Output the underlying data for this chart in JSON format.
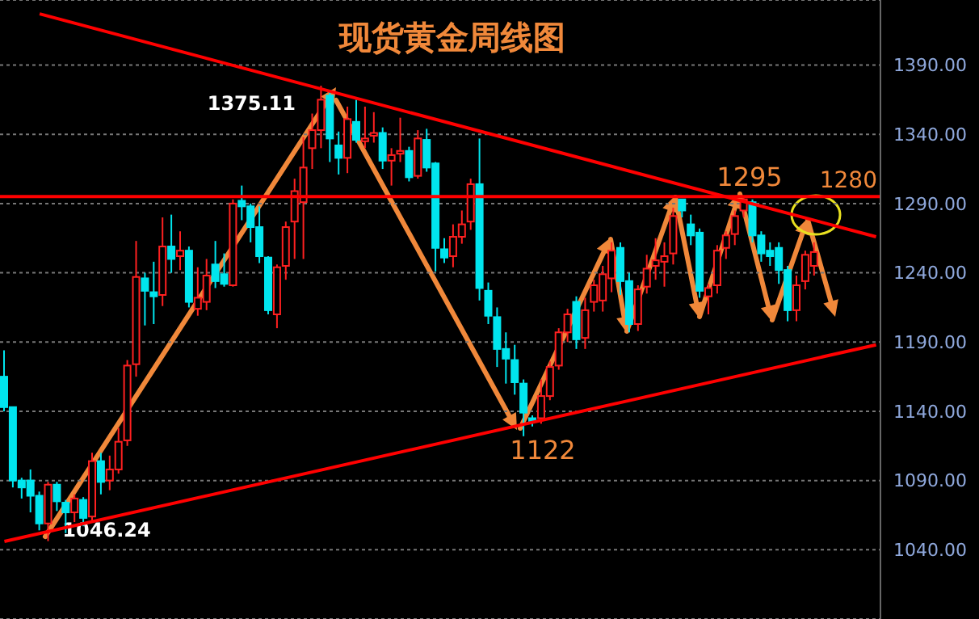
{
  "chart_data": {
    "type": "candlestick",
    "title": "现货黄金周线图",
    "categories": [
      null,
      null,
      null,
      null,
      null,
      null,
      null,
      null,
      null,
      null,
      null,
      null,
      null,
      null,
      null,
      null,
      null,
      null,
      null,
      null,
      null,
      null,
      null,
      null,
      null,
      null,
      null,
      null,
      null,
      null,
      null,
      null,
      null,
      null,
      null,
      null,
      null,
      null,
      null,
      null,
      null,
      null,
      null,
      null,
      null,
      null,
      null,
      null,
      null,
      null,
      null,
      null,
      null,
      null,
      null,
      null,
      null,
      null,
      null,
      null,
      null,
      null,
      null,
      null,
      null,
      null,
      null,
      null,
      null,
      null,
      null,
      null,
      null,
      null,
      null,
      null,
      null,
      null,
      null,
      null,
      null,
      null,
      null,
      null,
      null,
      null,
      null,
      null,
      null,
      null,
      null,
      null,
      null,
      null,
      null,
      null,
      null,
      null,
      null,
      null
    ],
    "ohlc": [
      [
        1165,
        1184,
        1140,
        1143
      ],
      [
        1143,
        1143,
        1085,
        1090
      ],
      [
        1090,
        1092,
        1077,
        1085
      ],
      [
        1090,
        1098,
        1067,
        1079
      ],
      [
        1079,
        1082,
        1054,
        1059
      ],
      [
        1059,
        1089,
        1046.24,
        1087
      ],
      [
        1087,
        1089,
        1068,
        1075
      ],
      [
        1074,
        1076,
        1052,
        1067
      ],
      [
        1067,
        1080,
        1060,
        1077
      ],
      [
        1076,
        1078,
        1057,
        1063
      ],
      [
        1064,
        1110,
        1060,
        1104
      ],
      [
        1104,
        1110,
        1080,
        1089
      ],
      [
        1090,
        1108,
        1083,
        1098
      ],
      [
        1098,
        1128,
        1095,
        1118
      ],
      [
        1119,
        1177,
        1115,
        1173
      ],
      [
        1174,
        1263,
        1165,
        1237
      ],
      [
        1236,
        1240,
        1202,
        1227
      ],
      [
        1226,
        1248,
        1203,
        1223
      ],
      [
        1224,
        1280,
        1216,
        1259
      ],
      [
        1259,
        1282,
        1240,
        1250
      ],
      [
        1252,
        1270,
        1242,
        1256
      ],
      [
        1256,
        1259,
        1215,
        1219
      ],
      [
        1214,
        1244,
        1209,
        1222
      ],
      [
        1219,
        1250,
        1213,
        1238
      ],
      [
        1246,
        1263,
        1229,
        1234
      ],
      [
        1239,
        1254,
        1230,
        1232
      ],
      [
        1231,
        1293,
        1230,
        1290
      ],
      [
        1292,
        1303,
        1278,
        1288
      ],
      [
        1288,
        1290,
        1262,
        1273
      ],
      [
        1273,
        1288,
        1247,
        1252
      ],
      [
        1251,
        1252,
        1210,
        1213
      ],
      [
        1210,
        1246,
        1200,
        1244
      ],
      [
        1245,
        1277,
        1235,
        1273
      ],
      [
        1277,
        1308,
        1250,
        1299
      ],
      [
        1291,
        1338,
        1250,
        1316
      ],
      [
        1330,
        1355,
        1315,
        1343
      ],
      [
        1343,
        1375.11,
        1330,
        1365
      ],
      [
        1368,
        1372,
        1320,
        1337
      ],
      [
        1332,
        1342,
        1311,
        1323
      ],
      [
        1323,
        1360,
        1312,
        1351
      ],
      [
        1349,
        1365,
        1334,
        1336
      ],
      [
        1335,
        1360,
        1330,
        1337
      ],
      [
        1339,
        1356,
        1334,
        1341
      ],
      [
        1341,
        1345,
        1315,
        1321
      ],
      [
        1321,
        1330,
        1303,
        1325
      ],
      [
        1326,
        1352,
        1320,
        1328
      ],
      [
        1328,
        1331,
        1306,
        1309
      ],
      [
        1310,
        1343,
        1308,
        1337
      ],
      [
        1336,
        1344,
        1313,
        1316
      ],
      [
        1319,
        1320,
        1241,
        1258
      ],
      [
        1257,
        1265,
        1247,
        1251
      ],
      [
        1252,
        1275,
        1244,
        1266
      ],
      [
        1266,
        1285,
        1261,
        1275
      ],
      [
        1277,
        1308,
        1271,
        1304
      ],
      [
        1304,
        1337,
        1220,
        1229
      ],
      [
        1227,
        1233,
        1203,
        1209
      ],
      [
        1208,
        1215,
        1172,
        1185
      ],
      [
        1185,
        1197,
        1160,
        1178
      ],
      [
        1177,
        1188,
        1152,
        1161
      ],
      [
        1160,
        1163,
        1122,
        1139
      ],
      [
        1135,
        1137,
        1129,
        1133
      ],
      [
        1135,
        1163,
        1131,
        1151
      ],
      [
        1151,
        1176,
        1148,
        1172
      ],
      [
        1173,
        1200,
        1170,
        1197
      ],
      [
        1197,
        1214,
        1190,
        1210
      ],
      [
        1219,
        1223,
        1185,
        1192
      ],
      [
        1193,
        1222,
        1185,
        1213
      ],
      [
        1219,
        1235,
        1212,
        1231
      ],
      [
        1220,
        1245,
        1212,
        1239
      ],
      [
        1236,
        1262,
        1226,
        1256
      ],
      [
        1258,
        1262,
        1224,
        1234
      ],
      [
        1234,
        1240,
        1197,
        1203
      ],
      [
        1203,
        1231,
        1198,
        1228
      ],
      [
        1230,
        1253,
        1225,
        1243
      ],
      [
        1245,
        1265,
        1235,
        1249
      ],
      [
        1248,
        1262,
        1230,
        1252
      ],
      [
        1254,
        1287,
        1246,
        1281
      ],
      [
        1293,
        1293,
        1280,
        1285
      ],
      [
        1275,
        1282,
        1260,
        1267
      ],
      [
        1269,
        1272,
        1222,
        1227
      ],
      [
        1223,
        1232,
        1210,
        1229
      ],
      [
        1231,
        1260,
        1225,
        1256
      ],
      [
        1258,
        1270,
        1250,
        1267
      ],
      [
        1268,
        1285,
        1260,
        1281
      ],
      [
        1285,
        1295,
        1280,
        1293
      ],
      [
        1291,
        1293,
        1262,
        1267
      ],
      [
        1267,
        1270,
        1248,
        1254
      ],
      [
        1256,
        1262,
        1245,
        1252
      ],
      [
        1258,
        1262,
        1232,
        1242
      ],
      [
        1242,
        1245,
        1205,
        1213
      ],
      [
        1213,
        1238,
        1205,
        1231
      ],
      [
        1234,
        1256,
        1228,
        1253
      ],
      [
        1245,
        1262,
        1238,
        1255
      ],
      null,
      null,
      null,
      null,
      null,
      null,
      null
    ],
    "colors": [
      "#00e5ee",
      "#00e5ee",
      "#00e5ee",
      "#00e5ee",
      "#00e5ee",
      "#ff2020",
      "#00e5ee",
      "#00e5ee",
      "#ff2020",
      "#00e5ee",
      "#ff2020",
      "#00e5ee",
      "#ff2020",
      "#ff2020",
      "#ff2020",
      "#ff2020",
      "#00e5ee",
      "#00e5ee",
      "#ff2020",
      "#00e5ee",
      "#ff2020",
      "#00e5ee",
      "#ff2020",
      "#ff2020",
      "#00e5ee",
      "#00e5ee",
      "#ff2020",
      "#00e5ee",
      "#00e5ee",
      "#00e5ee",
      "#00e5ee",
      "#ff2020",
      "#ff2020",
      "#ff2020",
      "#ff2020",
      "#ff2020",
      "#ff2020",
      "#00e5ee",
      "#00e5ee",
      "#ff2020",
      "#00e5ee",
      "#ff2020",
      "#ff2020",
      "#00e5ee",
      "#ff2020",
      "#ff2020",
      "#00e5ee",
      "#ff2020",
      "#00e5ee",
      "#00e5ee",
      "#00e5ee",
      "#ff2020",
      "#ff2020",
      "#ff2020",
      "#00e5ee",
      "#00e5ee",
      "#00e5ee",
      "#00e5ee",
      "#00e5ee",
      "#00e5ee",
      "#00e5ee",
      "#ff2020",
      "#ff2020",
      "#ff2020",
      "#ff2020",
      "#00e5ee",
      "#ff2020",
      "#ff2020",
      "#ff2020",
      "#ff2020",
      "#00e5ee",
      "#00e5ee",
      "#ff2020",
      "#ff2020",
      "#ff2020",
      "#ff2020",
      "#ff2020",
      "#00e5ee",
      "#00e5ee",
      "#00e5ee",
      "#ff2020",
      "#ff2020",
      "#ff2020",
      "#ff2020",
      "#ff2020",
      "#00e5ee",
      "#00e5ee",
      "#00e5ee",
      "#00e5ee",
      "#00e5ee",
      "#ff2020",
      "#ff2020",
      "#ff2020",
      null,
      null,
      null,
      null,
      null,
      null,
      null
    ],
    "series": [
      {
        "type": "line",
        "color": "#ff0000",
        "values": [
          null,
          null,
          null,
          null,
          1427,
          null,
          null,
          null,
          null,
          null,
          null,
          null,
          null,
          null,
          null,
          null,
          null,
          null,
          null,
          null,
          null,
          null,
          null,
          null,
          null,
          null,
          null,
          null,
          null,
          null,
          null,
          null,
          null,
          null,
          null,
          null,
          null,
          null,
          null,
          null,
          null,
          null,
          null,
          null,
          null,
          null,
          null,
          null,
          null,
          null,
          null,
          null,
          null,
          null,
          null,
          null,
          null,
          null,
          null,
          null,
          null,
          null,
          null,
          null,
          null,
          null,
          null,
          null,
          null,
          null,
          null,
          null,
          null,
          null,
          null,
          null,
          null,
          null,
          null,
          null,
          null,
          null,
          null,
          null,
          null,
          null,
          null,
          null,
          null,
          null,
          null,
          null,
          null,
          null,
          null,
          null,
          null,
          null,
          null,
          1266
        ]
      },
      {
        "type": "line",
        "color": "#ff0000",
        "values": [
          1046,
          null,
          null,
          null,
          null,
          null,
          null,
          null,
          null,
          null,
          null,
          null,
          null,
          null,
          null,
          null,
          null,
          null,
          null,
          null,
          null,
          null,
          null,
          null,
          null,
          null,
          null,
          null,
          null,
          null,
          null,
          null,
          null,
          null,
          null,
          null,
          null,
          null,
          null,
          null,
          null,
          null,
          null,
          null,
          null,
          null,
          null,
          null,
          null,
          null,
          null,
          null,
          null,
          null,
          null,
          null,
          null,
          null,
          null,
          null,
          null,
          null,
          null,
          null,
          null,
          null,
          null,
          null,
          null,
          null,
          null,
          null,
          null,
          null,
          null,
          null,
          null,
          null,
          null,
          null,
          null,
          null,
          null,
          null,
          null,
          null,
          null,
          null,
          null,
          null,
          null,
          null,
          null,
          null,
          null,
          null,
          null,
          null,
          null,
          1188
        ]
      }
    ],
    "ref_lines": [
      {
        "axis": "y",
        "value": 1295,
        "color": "#ff0000"
      }
    ],
    "annotations": [
      "1375.11",
      "1046.24",
      "1295",
      "1280",
      "1122"
    ],
    "ylim": [
      990,
      1437
    ],
    "yticks": [
      {
        "value": 1040,
        "label": "1040.00"
      },
      {
        "value": 1090,
        "label": "1090.00"
      },
      {
        "value": 1140,
        "label": "1140.00"
      },
      {
        "value": 1190,
        "label": "1190.00"
      },
      {
        "value": 1240,
        "label": "1240.00"
      },
      {
        "value": 1290,
        "label": "1290.00"
      },
      {
        "value": 1340,
        "label": "1340.00"
      },
      {
        "value": 1390,
        "label": "1390.00"
      }
    ],
    "grid": "y",
    "tick_labels": "y"
  }
}
